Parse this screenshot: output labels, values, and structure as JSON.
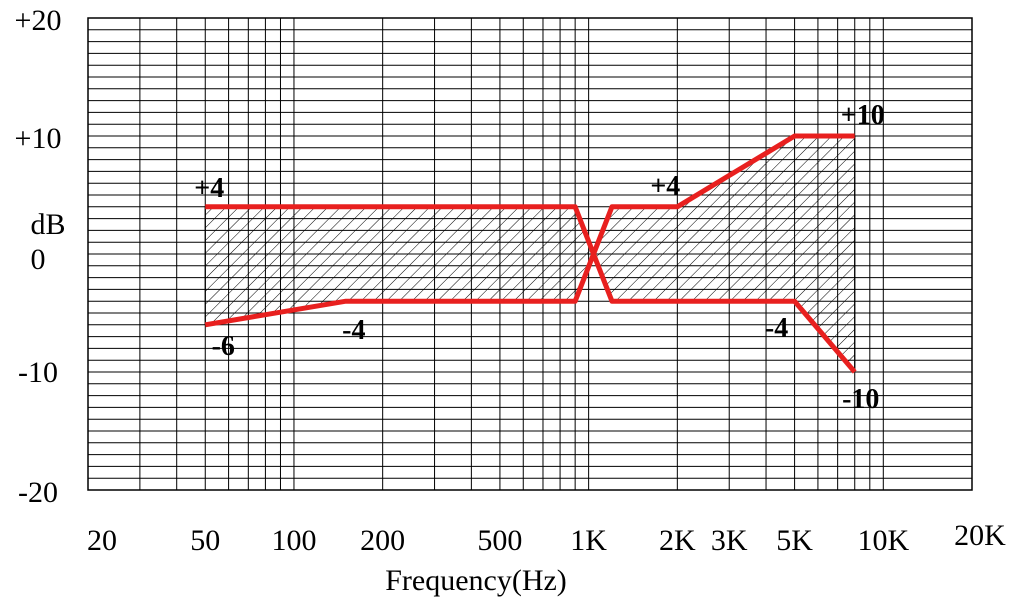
{
  "chart_data": {
    "type": "line",
    "title": "",
    "xlabel": "Frequency(Hz)",
    "ylabel": "dB",
    "x_scale": "log",
    "xlim": [
      20,
      20000
    ],
    "ylim": [
      -20,
      20
    ],
    "grid": true,
    "accent_color": "#e8201f",
    "x_ticks": [
      {
        "value": 20,
        "label": "20"
      },
      {
        "value": 50,
        "label": "50"
      },
      {
        "value": 100,
        "label": "100"
      },
      {
        "value": 200,
        "label": "200"
      },
      {
        "value": 500,
        "label": "500"
      },
      {
        "value": 1000,
        "label": "1K"
      },
      {
        "value": 2000,
        "label": "2K"
      },
      {
        "value": 3000,
        "label": "3K"
      },
      {
        "value": 5000,
        "label": "5K"
      },
      {
        "value": 10000,
        "label": "10K"
      },
      {
        "value": 20000,
        "label": "20K"
      }
    ],
    "y_ticks": [
      {
        "value": 20,
        "label": "+20"
      },
      {
        "value": 10,
        "label": "+10"
      },
      {
        "value": 0,
        "label": "0"
      },
      {
        "value": -10,
        "label": "-10"
      },
      {
        "value": -20,
        "label": "-20"
      }
    ],
    "series": [
      {
        "points": [
          [
            50,
            4
          ],
          [
            900,
            4
          ],
          [
            1200,
            -4
          ],
          [
            5000,
            -4
          ],
          [
            8000,
            -10
          ]
        ]
      },
      {
        "points": [
          [
            50,
            -6
          ],
          [
            150,
            -4
          ],
          [
            900,
            -4
          ],
          [
            1200,
            4
          ],
          [
            2000,
            4
          ],
          [
            5000,
            10
          ],
          [
            8000,
            10
          ]
        ]
      }
    ],
    "annotations": [
      {
        "text": "+4",
        "x": 50,
        "y": 4
      },
      {
        "text": "-6",
        "x": 50,
        "y": -6
      },
      {
        "text": "-4",
        "x": 150,
        "y": -4
      },
      {
        "text": "+4",
        "x": 2000,
        "y": 4
      },
      {
        "text": "+10",
        "x": 8000,
        "y": 10
      },
      {
        "text": "-4",
        "x": 5000,
        "y": -4
      },
      {
        "text": "-10",
        "x": 8000,
        "y": -10
      }
    ]
  }
}
